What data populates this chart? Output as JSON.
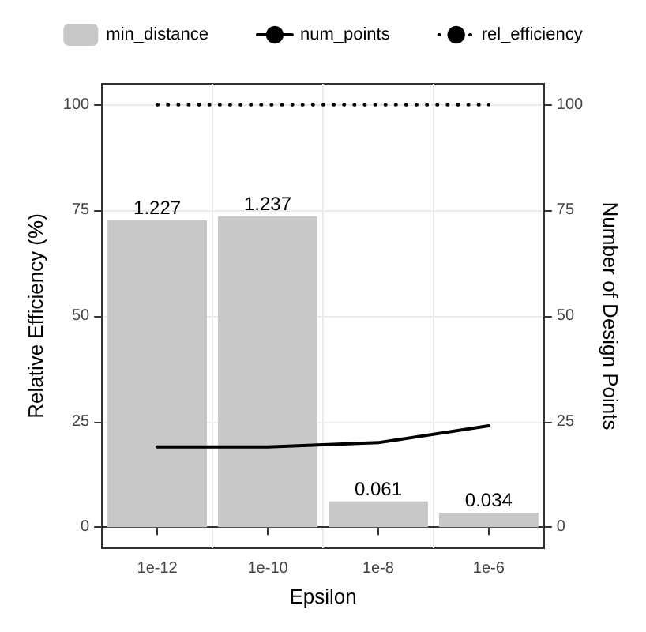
{
  "chart_data": {
    "type": "bar",
    "categories": [
      "1e-12",
      "1e-10",
      "1e-8",
      "1e-6"
    ],
    "xlabel": "Epsilon",
    "ylabel": "Relative Efficiency (%)",
    "y2label": "Number of Design Points",
    "ylim": [
      -5,
      105
    ],
    "yticks": [
      0,
      25,
      50,
      75,
      100
    ],
    "y2lim": [
      -5,
      105
    ],
    "y2ticks": [
      0,
      25,
      50,
      75,
      100
    ],
    "grid": true,
    "legend": "top",
    "marker": "none",
    "annotations": [
      {
        "text": "1.227",
        "x": "1e-12",
        "y": 72.7
      },
      {
        "text": "1.237",
        "x": "1e-10",
        "y": 73.6
      },
      {
        "text": "0.061",
        "x": "1e-8",
        "y": 6.1
      },
      {
        "text": "0.034",
        "x": "1e-6",
        "y": 3.4
      }
    ],
    "series": [
      {
        "name": "min_distance",
        "color": "#c8c8c8",
        "values": [
          72.7,
          73.6,
          6.1,
          3.4
        ]
      },
      {
        "name": "num_points",
        "type": "line",
        "color": "#000000",
        "line_style": "solid",
        "values": [
          19,
          19,
          20,
          24
        ]
      },
      {
        "name": "rel_efficiency",
        "type": "line",
        "color": "#000000",
        "line_style": "dotted",
        "values": [
          100,
          100,
          100,
          100
        ]
      }
    ]
  }
}
